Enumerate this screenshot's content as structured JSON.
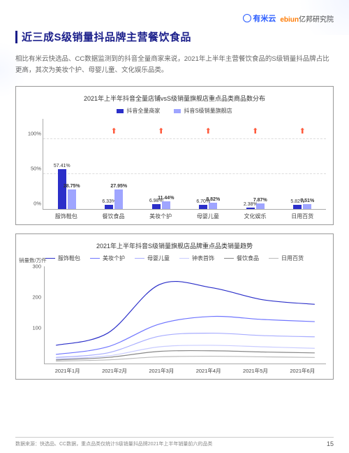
{
  "header": {
    "logo1": "有米云",
    "logo2_brand": "ebiun",
    "logo2_text": "亿邦研究院"
  },
  "title": "近三成S级销量抖品牌主营餐饮食品",
  "description": "相比有米云快选品、CC数据监测到的抖音全量商家来说，2021年上半年主营餐饮食品的S级销量抖品牌占比更高，其次为美妆个护、母婴儿童、文化娱乐品类。",
  "chart1": {
    "type": "bar",
    "title": "2021年上半年抖音全量店铺vsS级销量旗舰店重点品类商品数分布",
    "legend": [
      {
        "label": "抖音全量商家",
        "color": "#2b2fc9"
      },
      {
        "label": "抖音S级销量旗舰店",
        "color": "#9fa5ff"
      }
    ],
    "y_ticks": [
      "0%",
      "50%",
      "100%"
    ],
    "y_max": 100,
    "categories": [
      "服饰鞋包",
      "餐饮食品",
      "美妆个护",
      "母婴儿童",
      "文化娱乐",
      "日用百货"
    ],
    "series1": [
      57.41,
      6.33,
      6.98,
      6.7,
      2.38,
      5.82
    ],
    "series2": [
      28.75,
      27.95,
      11.44,
      8.82,
      7.87,
      7.51
    ],
    "labels1": [
      "57.41%",
      "6.33%",
      "6.98%",
      "6.70%",
      "2.38%",
      "5.82%"
    ],
    "labels2": [
      "28.75%",
      "27.95%",
      "11.44%",
      "8.82%",
      "7.87%",
      "7.51%"
    ],
    "arrows": [
      false,
      true,
      true,
      true,
      true,
      true
    ],
    "arrow_color": "#ff5a3c"
  },
  "chart2": {
    "type": "line",
    "title": "2021年上半年抖音S级销量旗舰店品牌重点品类销量趋势",
    "y_title": "销量数/万件",
    "legend": [
      {
        "label": "服饰鞋包",
        "color": "#2b2fc9"
      },
      {
        "label": "美妆个护",
        "color": "#6f75ff"
      },
      {
        "label": "母婴儿童",
        "color": "#a8adff"
      },
      {
        "label": "钟表首饰",
        "color": "#c9ccff"
      },
      {
        "label": "餐饮食品",
        "color": "#888888"
      },
      {
        "label": "日用百货",
        "color": "#bbbbbb"
      }
    ],
    "y_ticks": [
      "100",
      "200",
      "300"
    ],
    "y_max": 320,
    "x_labels": [
      "2021年1月",
      "2021年2月",
      "2021年3月",
      "2021年4月",
      "2021年5月",
      "2021年6月"
    ],
    "series": [
      {
        "color": "#2b2fc9",
        "values": [
          60,
          100,
          260,
          250,
          210,
          195
        ]
      },
      {
        "color": "#6f75ff",
        "values": [
          30,
          55,
          130,
          155,
          145,
          138
        ]
      },
      {
        "color": "#a8adff",
        "values": [
          20,
          35,
          90,
          100,
          92,
          88
        ]
      },
      {
        "color": "#c9ccff",
        "values": [
          15,
          25,
          55,
          60,
          55,
          50
        ]
      },
      {
        "color": "#888888",
        "values": [
          12,
          20,
          40,
          42,
          38,
          35
        ]
      },
      {
        "color": "#bbbbbb",
        "values": [
          8,
          12,
          22,
          24,
          22,
          20
        ]
      }
    ]
  },
  "footer": {
    "source": "数据来源：快选品、CC数据，重点品类仅统计S级销量抖品牌2021年上半年销量前六的品类",
    "page": "15"
  }
}
